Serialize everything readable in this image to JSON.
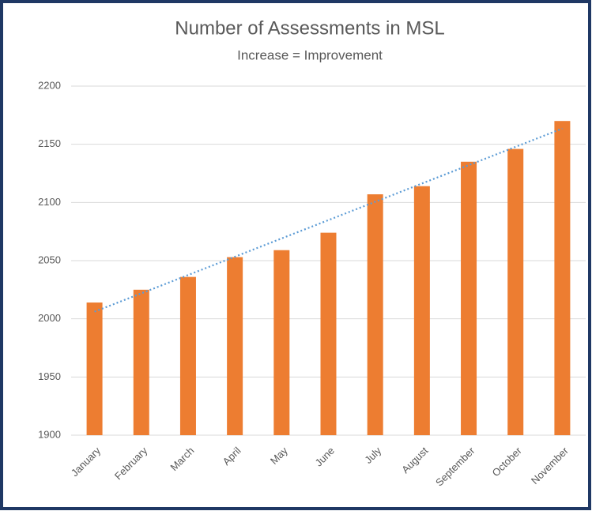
{
  "chart_data": {
    "type": "bar",
    "title": "Number of Assessments in MSL",
    "subtitle": "Increase = Improvement",
    "categories": [
      "January",
      "February",
      "March",
      "April",
      "May",
      "June",
      "July",
      "August",
      "September",
      "October",
      "November"
    ],
    "values": [
      2014,
      2025,
      2036,
      2053,
      2059,
      2074,
      2107,
      2114,
      2135,
      2146,
      2170
    ],
    "color": "#ed7d31",
    "ylim": [
      1900,
      2200
    ],
    "yticks": [
      1900,
      1950,
      2000,
      2050,
      2100,
      2150,
      2200
    ],
    "grid": true,
    "trendline": {
      "type": "linear",
      "color": "#5b9bd5"
    }
  }
}
